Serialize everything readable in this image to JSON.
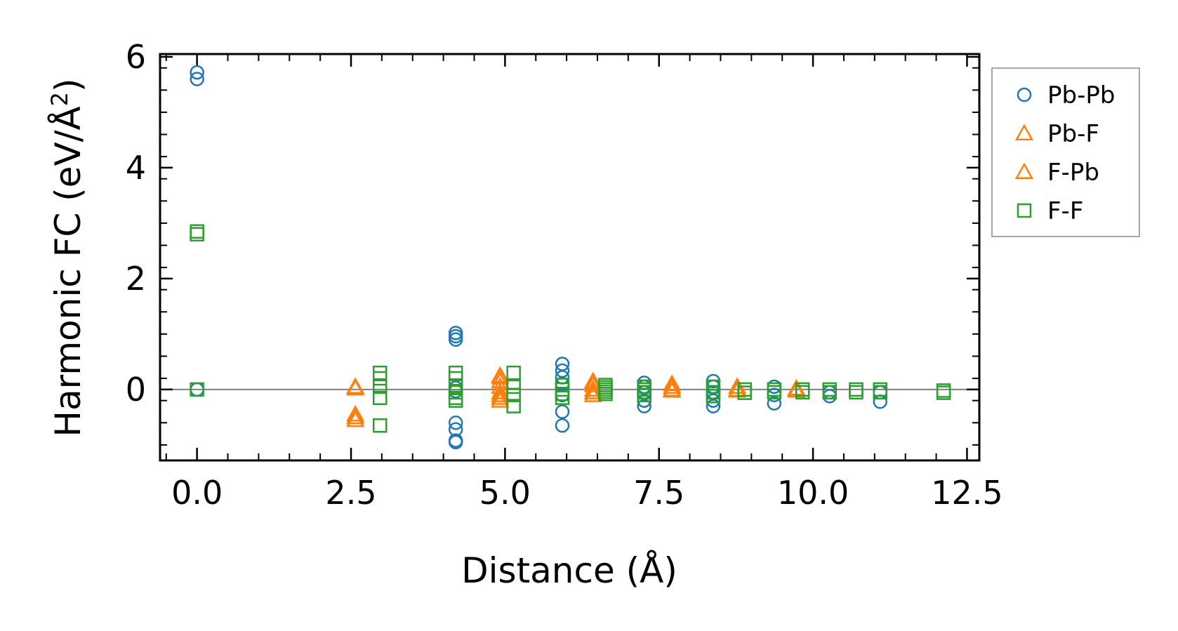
{
  "chart_data": {
    "type": "scatter",
    "xlabel": "Distance (Å)",
    "ylabel_main": "Harmonic FC (eV/Å",
    "ylabel_sup": "2",
    "ylabel_tail": ")",
    "xlim": [
      -0.6,
      12.7
    ],
    "ylim": [
      -1.28,
      6.05
    ],
    "xticks": [
      0.0,
      2.5,
      5.0,
      7.5,
      10.0,
      12.5
    ],
    "xtick_labels": [
      "0.0",
      "2.5",
      "5.0",
      "7.5",
      "10.0",
      "12.5"
    ],
    "yticks": [
      0,
      2,
      4,
      6
    ],
    "ytick_labels": [
      "0",
      "2",
      "4",
      "6"
    ],
    "zero_line": true,
    "legend_position": "outside-right",
    "series": [
      {
        "name": "Pb-Pb",
        "marker": "circle",
        "color": "#1f77b4",
        "points": [
          [
            0.0,
            5.72
          ],
          [
            0.0,
            5.6
          ],
          [
            0.0,
            0.0
          ],
          [
            4.2,
            1.02
          ],
          [
            4.2,
            0.96
          ],
          [
            4.2,
            0.9
          ],
          [
            4.2,
            0.03
          ],
          [
            4.2,
            -0.03
          ],
          [
            4.2,
            -0.6
          ],
          [
            4.2,
            -0.72
          ],
          [
            4.2,
            -0.92
          ],
          [
            4.2,
            -0.95
          ],
          [
            5.93,
            0.46
          ],
          [
            5.93,
            0.34
          ],
          [
            5.93,
            0.22
          ],
          [
            5.93,
            0.1
          ],
          [
            5.93,
            -0.1
          ],
          [
            5.93,
            -0.4
          ],
          [
            5.93,
            -0.65
          ],
          [
            7.26,
            0.12
          ],
          [
            7.26,
            0.05
          ],
          [
            7.26,
            -0.05
          ],
          [
            7.26,
            -0.2
          ],
          [
            7.26,
            -0.3
          ],
          [
            8.38,
            0.15
          ],
          [
            8.38,
            0.05
          ],
          [
            8.38,
            -0.05
          ],
          [
            8.38,
            -0.2
          ],
          [
            8.38,
            -0.3
          ],
          [
            9.37,
            0.05
          ],
          [
            9.37,
            -0.1
          ],
          [
            9.37,
            -0.25
          ],
          [
            10.27,
            -0.05
          ],
          [
            10.27,
            -0.12
          ],
          [
            11.09,
            -0.05
          ],
          [
            11.09,
            -0.22
          ]
        ]
      },
      {
        "name": "Pb-F",
        "marker": "triangle",
        "color": "#ff7f0e",
        "points": [
          [
            2.57,
            0.05
          ],
          [
            2.57,
            -0.45
          ],
          [
            2.57,
            -0.55
          ],
          [
            4.92,
            0.25
          ],
          [
            4.92,
            0.15
          ],
          [
            4.92,
            0.05
          ],
          [
            4.92,
            -0.05
          ],
          [
            4.92,
            -0.15
          ],
          [
            4.92,
            -0.2
          ],
          [
            6.43,
            0.15
          ],
          [
            6.43,
            0.08
          ],
          [
            6.43,
            0.0
          ],
          [
            6.43,
            -0.1
          ],
          [
            7.71,
            0.1
          ],
          [
            7.71,
            0.0
          ],
          [
            8.77,
            0.05
          ],
          [
            8.77,
            -0.02
          ],
          [
            9.73,
            0.02
          ],
          [
            9.73,
            -0.02
          ]
        ]
      },
      {
        "name": "F-Pb",
        "marker": "triangle",
        "color": "#ff7f0e",
        "points": [
          [
            2.57,
            0.02
          ],
          [
            2.57,
            -0.5
          ],
          [
            4.92,
            0.22
          ],
          [
            4.92,
            -0.1
          ],
          [
            6.43,
            0.12
          ],
          [
            6.43,
            -0.05
          ],
          [
            7.71,
            0.05
          ],
          [
            7.71,
            -0.02
          ],
          [
            8.77,
            0.0
          ],
          [
            9.73,
            0.0
          ]
        ]
      },
      {
        "name": "F-F",
        "marker": "square",
        "color": "#2ca02c",
        "points": [
          [
            0.0,
            2.85
          ],
          [
            0.0,
            2.8
          ],
          [
            0.0,
            0.0
          ],
          [
            2.97,
            0.3
          ],
          [
            2.97,
            0.2
          ],
          [
            2.97,
            0.05
          ],
          [
            2.97,
            -0.15
          ],
          [
            2.97,
            -0.65
          ],
          [
            4.2,
            0.3
          ],
          [
            4.2,
            0.2
          ],
          [
            4.2,
            0.05
          ],
          [
            4.2,
            -0.05
          ],
          [
            4.2,
            -0.15
          ],
          [
            4.2,
            -0.2
          ],
          [
            5.14,
            0.3
          ],
          [
            5.14,
            0.05
          ],
          [
            5.14,
            -0.1
          ],
          [
            5.14,
            -0.3
          ],
          [
            5.93,
            0.08
          ],
          [
            5.93,
            0.0
          ],
          [
            5.93,
            -0.08
          ],
          [
            5.93,
            -0.15
          ],
          [
            6.63,
            0.08
          ],
          [
            6.63,
            0.04
          ],
          [
            6.63,
            0.0
          ],
          [
            6.63,
            -0.04
          ],
          [
            6.63,
            -0.08
          ],
          [
            7.26,
            0.05
          ],
          [
            7.26,
            0.0
          ],
          [
            7.26,
            -0.05
          ],
          [
            7.26,
            -0.1
          ],
          [
            8.38,
            0.05
          ],
          [
            8.38,
            -0.05
          ],
          [
            8.38,
            -0.12
          ],
          [
            8.89,
            0.0
          ],
          [
            8.89,
            -0.06
          ],
          [
            9.37,
            0.0
          ],
          [
            9.37,
            -0.05
          ],
          [
            9.83,
            0.0
          ],
          [
            9.83,
            -0.05
          ],
          [
            10.27,
            0.0
          ],
          [
            10.27,
            -0.05
          ],
          [
            10.7,
            0.0
          ],
          [
            10.7,
            -0.05
          ],
          [
            11.09,
            0.0
          ],
          [
            11.09,
            -0.05
          ],
          [
            12.12,
            -0.02
          ],
          [
            12.12,
            -0.06
          ]
        ]
      }
    ]
  }
}
